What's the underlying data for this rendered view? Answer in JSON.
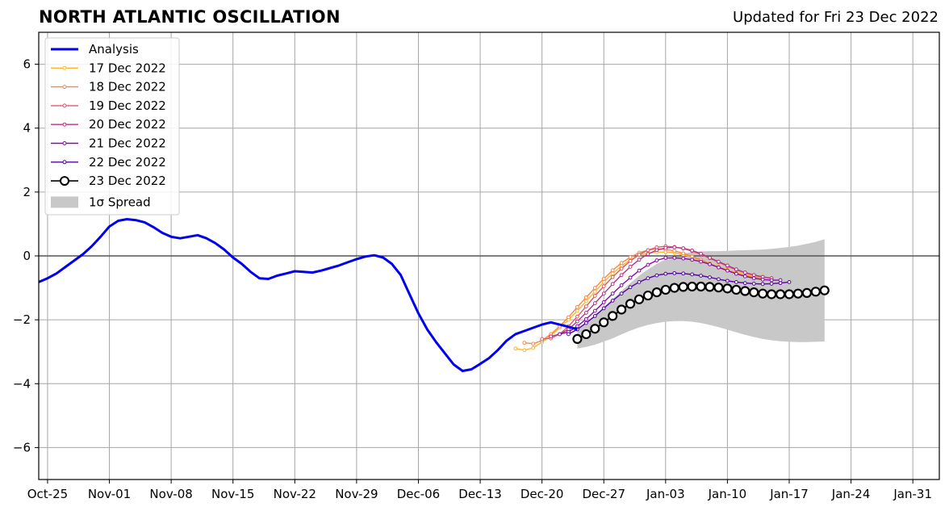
{
  "chart_data": {
    "type": "line",
    "title": "NORTH ATLANTIC OSCILLATION",
    "subtitle": "Updated for Fri 23 Dec 2022",
    "xlabel": "",
    "ylabel": "",
    "ylim": [
      -7,
      7
    ],
    "xlim": [
      "2022-10-24",
      "2023-02-03"
    ],
    "yticks": [
      "6",
      "4",
      "2",
      "0",
      "−2",
      "−4",
      "−6"
    ],
    "yticks_values": [
      6,
      4,
      2,
      0,
      -2,
      -4,
      -6
    ],
    "xticks": [
      "Oct-25",
      "Nov-01",
      "Nov-08",
      "Nov-15",
      "Nov-22",
      "Nov-29",
      "Dec-06",
      "Dec-13",
      "Dec-20",
      "Dec-27",
      "Jan-03",
      "Jan-10",
      "Jan-17",
      "Jan-24",
      "Jan-31"
    ],
    "xticks_dates": [
      "2022-10-25",
      "2022-11-01",
      "2022-11-08",
      "2022-11-15",
      "2022-11-22",
      "2022-11-29",
      "2022-12-06",
      "2022-12-13",
      "2022-12-20",
      "2022-12-27",
      "2023-01-03",
      "2023-01-10",
      "2023-01-17",
      "2023-01-24",
      "2023-01-31"
    ],
    "grid": true,
    "legend_position": "top-left",
    "analysis": {
      "name": "Analysis",
      "color": "#0000ee",
      "x_start": "2022-10-24",
      "values": [
        -0.82,
        -0.7,
        -0.55,
        -0.35,
        -0.15,
        0.05,
        0.3,
        0.6,
        0.92,
        1.1,
        1.15,
        1.12,
        1.05,
        0.9,
        0.72,
        0.6,
        0.55,
        0.6,
        0.65,
        0.55,
        0.4,
        0.2,
        -0.05,
        -0.25,
        -0.5,
        -0.7,
        -0.72,
        -0.62,
        -0.55,
        -0.48,
        -0.5,
        -0.52,
        -0.46,
        -0.38,
        -0.3,
        -0.2,
        -0.1,
        -0.02,
        0.02,
        -0.05,
        -0.25,
        -0.6,
        -1.2,
        -1.8,
        -2.3,
        -2.7,
        -3.05,
        -3.4,
        -3.6,
        -3.55,
        -3.38,
        -3.2,
        -2.95,
        -2.65,
        -2.45,
        -2.35,
        -2.25,
        -2.15,
        -2.08,
        -2.15,
        -2.22,
        -2.3
      ]
    },
    "series": [
      {
        "name": "17 Dec 2022",
        "color": "#fdb42f",
        "x_start": "2022-12-17",
        "values": [
          -2.9,
          -2.95,
          -2.88,
          -2.7,
          -2.5,
          -2.25,
          -2.0,
          -1.72,
          -1.42,
          -1.12,
          -0.82,
          -0.55,
          -0.32,
          -0.12,
          0.02,
          0.08,
          0.12,
          0.12,
          0.1,
          0.04,
          -0.04,
          -0.14,
          -0.24,
          -0.34,
          -0.44,
          -0.52,
          -0.58,
          -0.62,
          -0.65
        ]
      },
      {
        "name": "18 Dec 2022",
        "color": "#f48849",
        "x_start": "2022-12-18",
        "values": [
          -2.72,
          -2.75,
          -2.65,
          -2.45,
          -2.2,
          -1.92,
          -1.6,
          -1.3,
          -1.0,
          -0.72,
          -0.45,
          -0.22,
          -0.04,
          0.1,
          0.18,
          0.22,
          0.2,
          0.16,
          0.08,
          -0.02,
          -0.12,
          -0.24,
          -0.36,
          -0.46,
          -0.55,
          -0.62,
          -0.66,
          -0.7
        ]
      },
      {
        "name": "19 Dec 2022",
        "color": "#db5c68",
        "x_start": "2022-12-20",
        "values": [
          -2.6,
          -2.58,
          -2.45,
          -2.2,
          -1.9,
          -1.58,
          -1.25,
          -0.95,
          -0.66,
          -0.4,
          -0.16,
          0.04,
          0.18,
          0.27,
          0.3,
          0.28,
          0.23,
          0.15,
          0.05,
          -0.07,
          -0.2,
          -0.32,
          -0.44,
          -0.53,
          -0.6,
          -0.66,
          -0.7
        ]
      },
      {
        "name": "20 Dec 2022",
        "color": "#b83289",
        "x_start": "2022-12-21",
        "values": [
          -2.52,
          -2.45,
          -2.3,
          -2.05,
          -1.78,
          -1.48,
          -1.18,
          -0.88,
          -0.6,
          -0.34,
          -0.12,
          0.06,
          0.18,
          0.25,
          0.27,
          0.24,
          0.17,
          0.07,
          -0.06,
          -0.18,
          -0.3,
          -0.42,
          -0.52,
          -0.6,
          -0.66,
          -0.7
        ]
      },
      {
        "name": "21 Dec 2022",
        "color": "#8b0aa5",
        "x_start": "2022-12-22",
        "values": [
          -2.45,
          -2.38,
          -2.2,
          -1.98,
          -1.72,
          -1.45,
          -1.18,
          -0.92,
          -0.68,
          -0.46,
          -0.28,
          -0.14,
          -0.06,
          -0.06,
          -0.08,
          -0.12,
          -0.18,
          -0.26,
          -0.36,
          -0.46,
          -0.56,
          -0.64,
          -0.7,
          -0.74,
          -0.76,
          -0.76
        ]
      },
      {
        "name": "22 Dec 2022",
        "color": "#5302a3",
        "x_start": "2022-12-23",
        "values": [
          -2.45,
          -2.3,
          -2.1,
          -1.88,
          -1.64,
          -1.4,
          -1.18,
          -0.98,
          -0.82,
          -0.7,
          -0.61,
          -0.56,
          -0.54,
          -0.55,
          -0.58,
          -0.62,
          -0.67,
          -0.73,
          -0.78,
          -0.82,
          -0.85,
          -0.87,
          -0.88,
          -0.87,
          -0.85,
          -0.82
        ]
      },
      {
        "name": "23 Dec 2022",
        "color": "#000000",
        "x_start": "2022-12-24",
        "values": [
          -2.6,
          -2.45,
          -2.28,
          -2.08,
          -1.88,
          -1.68,
          -1.5,
          -1.36,
          -1.24,
          -1.14,
          -1.06,
          -1.0,
          -0.97,
          -0.96,
          -0.96,
          -0.97,
          -0.99,
          -1.02,
          -1.06,
          -1.1,
          -1.14,
          -1.18,
          -1.2,
          -1.2,
          -1.2,
          -1.18,
          -1.16,
          -1.12,
          -1.08
        ]
      }
    ],
    "spread": {
      "name": "1σ Spread",
      "color": "#c8c8c8",
      "x_start": "2022-12-24",
      "upper": [
        -2.3,
        -2.1,
        -1.85,
        -1.6,
        -1.35,
        -1.1,
        -0.85,
        -0.62,
        -0.42,
        -0.25,
        -0.1,
        0.0,
        0.07,
        0.12,
        0.14,
        0.15,
        0.15,
        0.16,
        0.17,
        0.18,
        0.19,
        0.2,
        0.22,
        0.25,
        0.28,
        0.32,
        0.38,
        0.44,
        0.52
      ],
      "lower": [
        -2.9,
        -2.85,
        -2.78,
        -2.68,
        -2.58,
        -2.46,
        -2.34,
        -2.24,
        -2.16,
        -2.1,
        -2.06,
        -2.04,
        -2.04,
        -2.06,
        -2.1,
        -2.16,
        -2.23,
        -2.31,
        -2.39,
        -2.47,
        -2.54,
        -2.6,
        -2.64,
        -2.67,
        -2.69,
        -2.7,
        -2.7,
        -2.69,
        -2.68
      ]
    }
  }
}
